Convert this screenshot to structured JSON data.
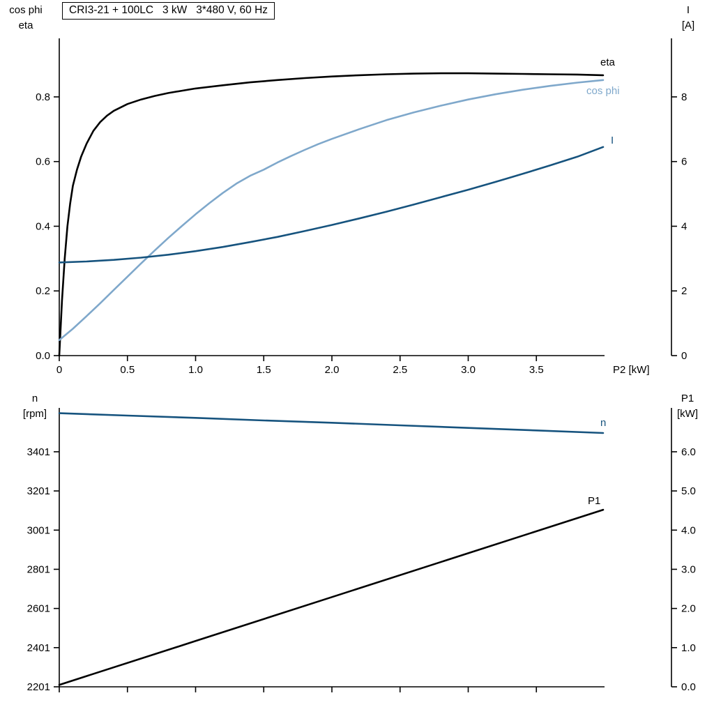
{
  "title": "CRI3-21 + 100LC   3 kW   3*480 V, 60 Hz",
  "colors": {
    "black": "#000000",
    "dark_blue": "#16537e",
    "light_blue": "#7fa8cb"
  },
  "chart_data": [
    {
      "id": "motor-curves-top",
      "type": "line",
      "title": "CRI3-21 + 100LC   3 kW   3*480 V, 60 Hz",
      "left_axis": {
        "header": [
          "cos phi",
          "eta"
        ],
        "tick_values": [
          0.0,
          0.2,
          0.4,
          0.6,
          0.8
        ],
        "tick_labels": [
          "0.0",
          "0.2",
          "0.4",
          "0.6",
          "0.8"
        ],
        "range": [
          0,
          0.981
        ]
      },
      "right_axis": {
        "header": [
          "I",
          "[A]"
        ],
        "tick_values": [
          0,
          2,
          4,
          6,
          8
        ],
        "tick_labels": [
          "0",
          "2",
          "4",
          "6",
          "8"
        ],
        "range": [
          0,
          9.81
        ]
      },
      "x_axis": {
        "label": "P2 [kW]",
        "tick_values": [
          0,
          0.5,
          1.0,
          1.5,
          2.0,
          2.5,
          3.0,
          3.5
        ],
        "tick_labels": [
          "0",
          "0.5",
          "1.0",
          "1.5",
          "2.0",
          "2.5",
          "3.0",
          "3.5"
        ],
        "range": [
          0,
          4.0
        ],
        "show_tick_labels": true
      },
      "series": [
        {
          "name": "eta",
          "label": "eta",
          "axis": "left",
          "color": "black",
          "points": [
            [
              0,
              0
            ],
            [
              0.02,
              0.17
            ],
            [
              0.04,
              0.3
            ],
            [
              0.06,
              0.4
            ],
            [
              0.08,
              0.47
            ],
            [
              0.1,
              0.525
            ],
            [
              0.13,
              0.575
            ],
            [
              0.16,
              0.615
            ],
            [
              0.2,
              0.655
            ],
            [
              0.25,
              0.695
            ],
            [
              0.3,
              0.722
            ],
            [
              0.35,
              0.742
            ],
            [
              0.4,
              0.757
            ],
            [
              0.5,
              0.778
            ],
            [
              0.6,
              0.792
            ],
            [
              0.7,
              0.803
            ],
            [
              0.8,
              0.812
            ],
            [
              0.9,
              0.819
            ],
            [
              1.0,
              0.826
            ],
            [
              1.2,
              0.836
            ],
            [
              1.4,
              0.845
            ],
            [
              1.6,
              0.852
            ],
            [
              1.8,
              0.858
            ],
            [
              2.0,
              0.863
            ],
            [
              2.2,
              0.867
            ],
            [
              2.4,
              0.87
            ],
            [
              2.6,
              0.872
            ],
            [
              2.8,
              0.873
            ],
            [
              3.0,
              0.873
            ],
            [
              3.2,
              0.872
            ],
            [
              3.4,
              0.871
            ],
            [
              3.6,
              0.87
            ],
            [
              3.8,
              0.869
            ],
            [
              3.99,
              0.867
            ]
          ]
        },
        {
          "name": "cos_phi",
          "label": "cos phi",
          "axis": "left",
          "color": "light_blue",
          "points": [
            [
              0,
              0.048
            ],
            [
              0.1,
              0.083
            ],
            [
              0.2,
              0.122
            ],
            [
              0.3,
              0.162
            ],
            [
              0.4,
              0.203
            ],
            [
              0.5,
              0.244
            ],
            [
              0.6,
              0.285
            ],
            [
              0.7,
              0.325
            ],
            [
              0.8,
              0.364
            ],
            [
              0.9,
              0.401
            ],
            [
              1.0,
              0.437
            ],
            [
              1.1,
              0.471
            ],
            [
              1.2,
              0.503
            ],
            [
              1.3,
              0.532
            ],
            [
              1.4,
              0.556
            ],
            [
              1.5,
              0.575
            ],
            [
              1.6,
              0.597
            ],
            [
              1.7,
              0.617
            ],
            [
              1.8,
              0.636
            ],
            [
              1.9,
              0.654
            ],
            [
              2.0,
              0.67
            ],
            [
              2.2,
              0.7
            ],
            [
              2.4,
              0.728
            ],
            [
              2.6,
              0.752
            ],
            [
              2.8,
              0.773
            ],
            [
              3.0,
              0.792
            ],
            [
              3.2,
              0.808
            ],
            [
              3.4,
              0.822
            ],
            [
              3.6,
              0.834
            ],
            [
              3.8,
              0.844
            ],
            [
              3.99,
              0.852
            ]
          ]
        },
        {
          "name": "I",
          "label": "I",
          "axis": "right",
          "color": "dark_blue",
          "points": [
            [
              0,
              2.88
            ],
            [
              0.2,
              2.91
            ],
            [
              0.4,
              2.96
            ],
            [
              0.6,
              3.03
            ],
            [
              0.8,
              3.12
            ],
            [
              1.0,
              3.23
            ],
            [
              1.2,
              3.36
            ],
            [
              1.4,
              3.51
            ],
            [
              1.6,
              3.67
            ],
            [
              1.8,
              3.85
            ],
            [
              2.0,
              4.04
            ],
            [
              2.2,
              4.24
            ],
            [
              2.4,
              4.45
            ],
            [
              2.6,
              4.67
            ],
            [
              2.8,
              4.9
            ],
            [
              3.0,
              5.13
            ],
            [
              3.2,
              5.37
            ],
            [
              3.4,
              5.62
            ],
            [
              3.6,
              5.88
            ],
            [
              3.8,
              6.15
            ],
            [
              3.99,
              6.45
            ]
          ]
        }
      ]
    },
    {
      "id": "speed-power-bottom",
      "type": "line",
      "title": "",
      "left_axis": {
        "header": [
          "n",
          "[rpm]"
        ],
        "tick_values": [
          2201,
          2401,
          2601,
          2801,
          3001,
          3201,
          3401
        ],
        "tick_labels": [
          "2201",
          "2401",
          "2601",
          "2801",
          "3001",
          "3201",
          "3401"
        ],
        "range": [
          2201,
          3625
        ]
      },
      "right_axis": {
        "header": [
          "P1",
          "[kW]"
        ],
        "tick_values": [
          0,
          1,
          2,
          3,
          4,
          5,
          6
        ],
        "tick_labels": [
          "0.0",
          "1.0",
          "2.0",
          "3.0",
          "4.0",
          "5.0",
          "6.0"
        ],
        "range": [
          0,
          7.12
        ]
      },
      "x_axis": {
        "label": "",
        "tick_values": [
          0,
          0.5,
          1.0,
          1.5,
          2.0,
          2.5,
          3.0,
          3.5
        ],
        "tick_labels": [],
        "range": [
          0,
          4.0
        ],
        "show_tick_labels": false
      },
      "series": [
        {
          "name": "n",
          "label": "n",
          "axis": "left",
          "color": "dark_blue",
          "points": [
            [
              0,
              3598
            ],
            [
              0.5,
              3586
            ],
            [
              1.0,
              3574
            ],
            [
              1.5,
              3561
            ],
            [
              2.0,
              3549
            ],
            [
              2.5,
              3536
            ],
            [
              3.0,
              3523
            ],
            [
              3.5,
              3510
            ],
            [
              3.99,
              3497
            ]
          ]
        },
        {
          "name": "P1",
          "label": "P1",
          "axis": "right",
          "color": "black",
          "points": [
            [
              0,
              0.05
            ],
            [
              1.0,
              1.17
            ],
            [
              2.0,
              2.29
            ],
            [
              3.0,
              3.41
            ],
            [
              3.99,
              4.52
            ]
          ]
        }
      ]
    }
  ]
}
